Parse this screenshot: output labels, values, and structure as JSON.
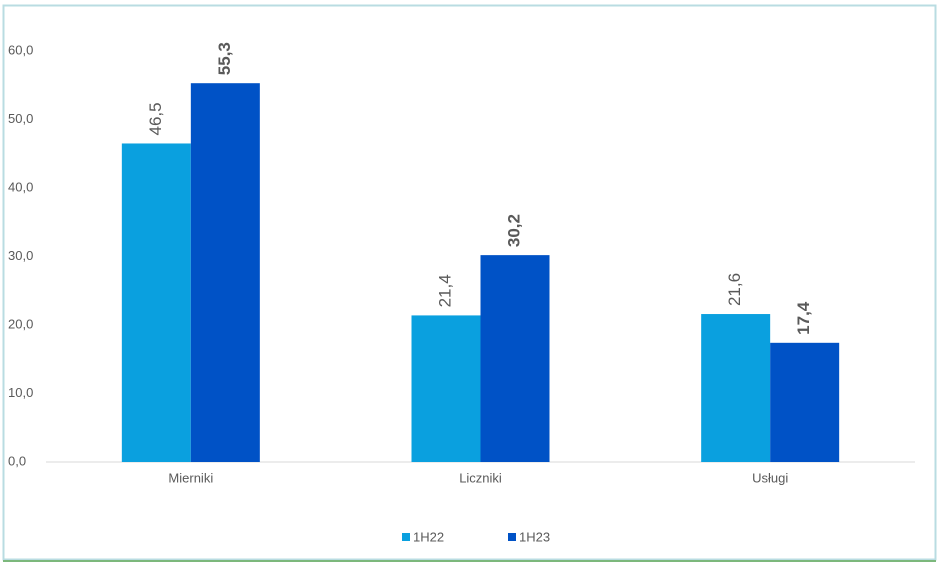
{
  "chart_data": {
    "type": "bar",
    "categories": [
      "Mierniki",
      "Liczniki",
      "Usługi"
    ],
    "series": [
      {
        "name": "1H22",
        "color": "#0aa0df",
        "values": [
          46.5,
          21.4,
          21.6
        ],
        "value_labels": [
          "46,5",
          "21,4",
          "21,6"
        ]
      },
      {
        "name": "1H23",
        "color": "#0052c6",
        "values": [
          55.3,
          30.2,
          17.4
        ],
        "value_labels": [
          "55,3",
          "30,2",
          "17,4"
        ]
      }
    ],
    "ylim": [
      0,
      60
    ],
    "yticks": [
      {
        "value": 0,
        "label": "0,0"
      },
      {
        "value": 10,
        "label": "10,0"
      },
      {
        "value": 20,
        "label": "20,0"
      },
      {
        "value": 30,
        "label": "30,0"
      },
      {
        "value": 40,
        "label": "40,0"
      },
      {
        "value": 50,
        "label": "50,0"
      },
      {
        "value": 60,
        "label": "60,0"
      }
    ],
    "legend": "bottom"
  }
}
